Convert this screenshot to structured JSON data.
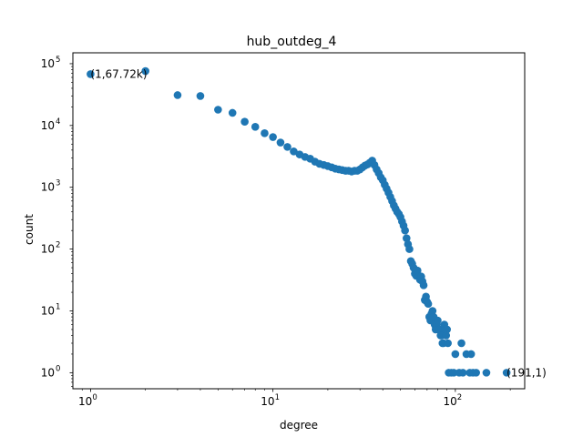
{
  "chart_data": {
    "type": "scatter",
    "title": "hub_outdeg_4",
    "xlabel": "degree",
    "ylabel": "count",
    "xscale": "log",
    "yscale": "log",
    "xlim": [
      0.8,
      240
    ],
    "ylim": [
      0.55,
      150000
    ],
    "grid": false,
    "marker_color": "#1f77b4",
    "x_ticks": [
      {
        "base": "10",
        "exp": "0",
        "value": 1
      },
      {
        "base": "10",
        "exp": "1",
        "value": 10
      },
      {
        "base": "10",
        "exp": "2",
        "value": 100
      }
    ],
    "y_ticks": [
      {
        "base": "10",
        "exp": "0",
        "value": 1
      },
      {
        "base": "10",
        "exp": "1",
        "value": 10
      },
      {
        "base": "10",
        "exp": "2",
        "value": 100
      },
      {
        "base": "10",
        "exp": "3",
        "value": 1000
      },
      {
        "base": "10",
        "exp": "4",
        "value": 10000
      },
      {
        "base": "10",
        "exp": "5",
        "value": 100000
      }
    ],
    "annotations": [
      {
        "text": "(1,67.72k)",
        "x": 1,
        "y": 67720
      },
      {
        "text": "(191,1)",
        "x": 191,
        "y": 1
      }
    ],
    "points": [
      [
        1,
        67720
      ],
      [
        2,
        76000
      ],
      [
        3,
        31000
      ],
      [
        4,
        30000
      ],
      [
        5,
        18000
      ],
      [
        6,
        16000
      ],
      [
        7,
        11500
      ],
      [
        8,
        9500
      ],
      [
        9,
        7500
      ],
      [
        10,
        6500
      ],
      [
        11,
        5300
      ],
      [
        12,
        4500
      ],
      [
        13,
        3800
      ],
      [
        14,
        3400
      ],
      [
        15,
        3100
      ],
      [
        16,
        2900
      ],
      [
        17,
        2600
      ],
      [
        18,
        2400
      ],
      [
        19,
        2300
      ],
      [
        20,
        2200
      ],
      [
        21,
        2100
      ],
      [
        22,
        2000
      ],
      [
        23,
        1950
      ],
      [
        24,
        1900
      ],
      [
        25,
        1850
      ],
      [
        26,
        1850
      ],
      [
        27,
        1800
      ],
      [
        28,
        1850
      ],
      [
        29,
        1850
      ],
      [
        30,
        1950
      ],
      [
        31,
        2100
      ],
      [
        32,
        2250
      ],
      [
        33,
        2350
      ],
      [
        34,
        2500
      ],
      [
        35,
        2700
      ],
      [
        36,
        2300
      ],
      [
        37,
        1950
      ],
      [
        38,
        1700
      ],
      [
        39,
        1450
      ],
      [
        40,
        1300
      ],
      [
        41,
        1100
      ],
      [
        42,
        950
      ],
      [
        43,
        820
      ],
      [
        44,
        700
      ],
      [
        45,
        600
      ],
      [
        46,
        510
      ],
      [
        47,
        450
      ],
      [
        48,
        400
      ],
      [
        49,
        370
      ],
      [
        50,
        330
      ],
      [
        51,
        280
      ],
      [
        52,
        240
      ],
      [
        53,
        200
      ],
      [
        54,
        150
      ],
      [
        55,
        120
      ],
      [
        56,
        100
      ],
      [
        57,
        64
      ],
      [
        58,
        58
      ],
      [
        59,
        50
      ],
      [
        60,
        40
      ],
      [
        61,
        37
      ],
      [
        62,
        45
      ],
      [
        63,
        36
      ],
      [
        64,
        32
      ],
      [
        65,
        36
      ],
      [
        66,
        30
      ],
      [
        67,
        26
      ],
      [
        68,
        15
      ],
      [
        69,
        17
      ],
      [
        70,
        14
      ],
      [
        71,
        13
      ],
      [
        72,
        8
      ],
      [
        73,
        7
      ],
      [
        74,
        9
      ],
      [
        75,
        10
      ],
      [
        76,
        8
      ],
      [
        77,
        6
      ],
      [
        78,
        5
      ],
      [
        79,
        6
      ],
      [
        80,
        7
      ],
      [
        81,
        5
      ],
      [
        82,
        5
      ],
      [
        83,
        4
      ],
      [
        84,
        4
      ],
      [
        85,
        3
      ],
      [
        86,
        3
      ],
      [
        87,
        6
      ],
      [
        88,
        5
      ],
      [
        89,
        4
      ],
      [
        90,
        5
      ],
      [
        91,
        3
      ],
      [
        92,
        1
      ],
      [
        95,
        1
      ],
      [
        98,
        1
      ],
      [
        100,
        2
      ],
      [
        105,
        1
      ],
      [
        108,
        3
      ],
      [
        110,
        1
      ],
      [
        115,
        2
      ],
      [
        120,
        1
      ],
      [
        122,
        2
      ],
      [
        125,
        1
      ],
      [
        130,
        1
      ],
      [
        148,
        1
      ],
      [
        191,
        1
      ]
    ]
  }
}
